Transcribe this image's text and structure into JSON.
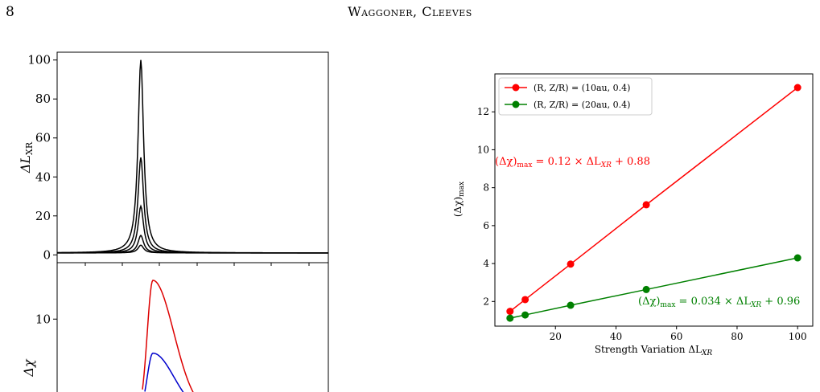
{
  "page": {
    "number": "8",
    "running_head": "Waggoner, Cleeves"
  },
  "left_figure": {
    "top_panel": {
      "ylabel": "ΔL",
      "ylabel_sub": "XR",
      "yticks": [
        0,
        20,
        40,
        60,
        80,
        100
      ],
      "ylim": [
        -4,
        104
      ],
      "peaks": [
        100,
        50,
        25,
        10,
        5
      ]
    },
    "bottom_panel": {
      "ylabel": "Δχ",
      "yticks": [
        10
      ],
      "ylim": [
        3.8,
        14.8
      ],
      "curves": [
        {
          "color": "#dd0000",
          "peak": 13.3
        },
        {
          "color": "#0000cc",
          "peak": 7.1
        }
      ]
    }
  },
  "chart_data": {
    "type": "line",
    "xlabel": "Strength Variation ΔL",
    "xlabel_sub": "XR",
    "ylabel": "(Δχ)",
    "ylabel_sub": "max",
    "xlim": [
      0,
      105
    ],
    "ylim": [
      0.7,
      14
    ],
    "xticks": [
      20,
      40,
      60,
      80,
      100
    ],
    "yticks": [
      2,
      4,
      6,
      8,
      10,
      12
    ],
    "grid": false,
    "legend": "top-left",
    "series": [
      {
        "name": "(R, Z/R) = (10au, 0.4)",
        "color": "#ff0000",
        "x": [
          5,
          10,
          25,
          50,
          100
        ],
        "y": [
          1.48,
          2.1,
          3.97,
          7.1,
          13.28
        ],
        "annotation": {
          "pre": "(Δχ)",
          "sub": "max",
          "post": " = 0.12 × ΔL",
          "sub2": "XR",
          "post2": " + 0.88"
        }
      },
      {
        "name": "(R, Z/R) = (20au, 0.4)",
        "color": "#008000",
        "x": [
          5,
          10,
          25,
          50,
          100
        ],
        "y": [
          1.12,
          1.29,
          1.8,
          2.63,
          4.3
        ],
        "annotation": {
          "pre": "(Δχ)",
          "sub": "max",
          "post": " = 0.034 × ΔL",
          "sub2": "XR",
          "post2": " + 0.96"
        }
      }
    ]
  }
}
